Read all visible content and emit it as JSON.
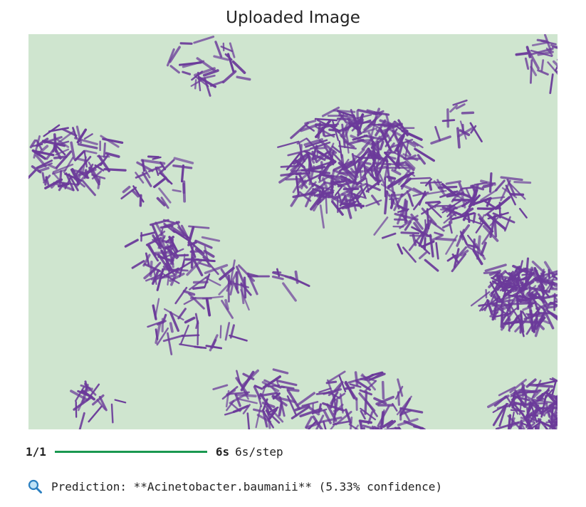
{
  "plot": {
    "title": "Uploaded Image"
  },
  "image": {
    "background_color": "#cfe5cf",
    "stain_color": "#6b3a9a"
  },
  "progress": {
    "step_count": "1/1",
    "fraction": 1.0,
    "elapsed": "6s",
    "rate": "6s/step",
    "bar_color": "#1a9850"
  },
  "prediction": {
    "icon": "magnifier-icon",
    "text": "Prediction: **Acinetobacter.baumanii** (5.33% confidence)"
  }
}
